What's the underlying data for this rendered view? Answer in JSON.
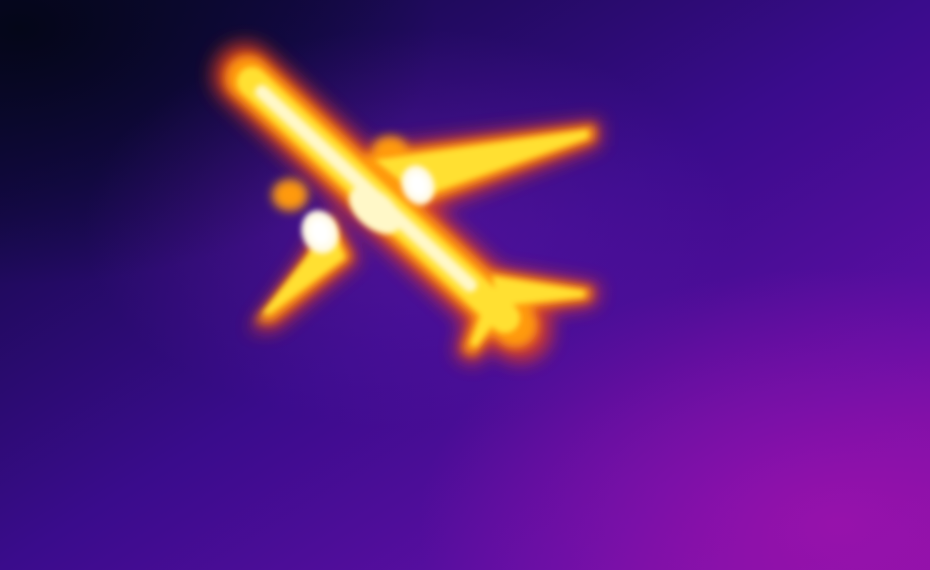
{
  "image": {
    "subject": "airplane",
    "palette": {
      "sky_dark": "#05081e",
      "sky_deep": "#2a0a6e",
      "sky_mid": "#4a0c9a",
      "sky_magenta": "#8a10a8",
      "plane_edge": "#e8401a",
      "plane_orange": "#ff9a10",
      "plane_yellow": "#ffe030",
      "plane_core": "#fff8c8",
      "engine_hot": "#ffffff"
    }
  }
}
